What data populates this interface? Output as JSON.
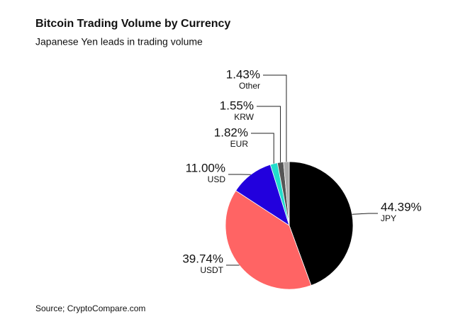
{
  "chart_data": {
    "type": "pie",
    "title": "Bitcoin Trading Volume by Currency",
    "subtitle": "Japanese Yen leads in trading volume",
    "source": "Source; CryptoCompare.com",
    "categories": [
      "JPY",
      "USDT",
      "USD",
      "EUR",
      "KRW",
      "Other"
    ],
    "values": [
      44.39,
      39.74,
      11.0,
      1.82,
      1.55,
      1.43
    ],
    "value_labels": [
      "44.39%",
      "39.74%",
      "11.00%",
      "1.82%",
      "1.55%",
      "1.43%"
    ],
    "colors": [
      "#000000",
      "#ff6464",
      "#2200dd",
      "#22ddcc",
      "#555555",
      "#aaaaaa"
    ]
  }
}
